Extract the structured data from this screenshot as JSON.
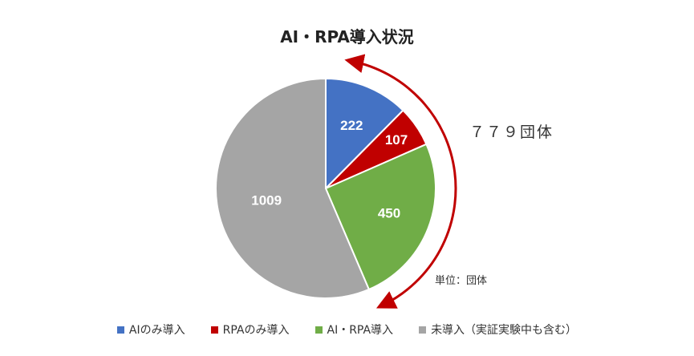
{
  "chart_data": {
    "type": "pie",
    "title": "AI・RPA導入状況",
    "categories": [
      "AIのみ導入",
      "RPAのみ導入",
      "AI・RPA導入",
      "未導入（実証実験中も含む）"
    ],
    "values": [
      222,
      107,
      450,
      1009
    ],
    "colors": [
      "#4472c4",
      "#c00000",
      "#70ad47",
      "#a5a5a5"
    ],
    "annotation_total": "７７９団体",
    "unit_label": "単位：団体",
    "legend_position": "bottom",
    "arrow_color": "#c00000"
  }
}
